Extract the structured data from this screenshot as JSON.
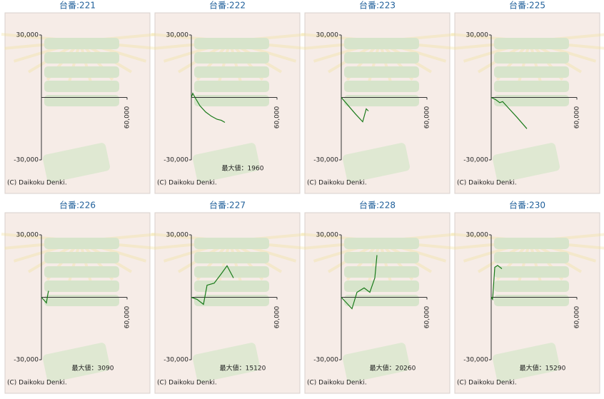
{
  "chart_data": [
    {
      "type": "line",
      "title": "台番:221",
      "x": [],
      "values": [],
      "color": "#1a7a1a",
      "xlim": [
        0,
        60000
      ],
      "ylim": [
        -30000,
        30000
      ],
      "xticks": [
        {
          "value": 60000,
          "label": "60,000"
        }
      ],
      "yticks": [
        {
          "value": -30000,
          "label": "-30,000"
        },
        {
          "value": 30000,
          "label": "30,000"
        }
      ],
      "copyright": "(C) Daikoku Denki."
    },
    {
      "type": "line",
      "title": "台番:222",
      "x": [
        0,
        1000,
        3000,
        6000,
        10000,
        14000,
        18000,
        21000,
        23500
      ],
      "values": [
        0,
        1960,
        -500,
        -4000,
        -7000,
        -9000,
        -10500,
        -11000,
        -12000
      ],
      "color": "#1a7a1a",
      "xlim": [
        0,
        60000
      ],
      "ylim": [
        -30000,
        30000
      ],
      "xticks": [
        {
          "value": 60000,
          "label": "60,000"
        }
      ],
      "yticks": [
        {
          "value": -30000,
          "label": "-30,000"
        },
        {
          "value": 30000,
          "label": "30,000"
        }
      ],
      "annotation": "最大値：1960",
      "copyright": "(C) Daikoku Denki."
    },
    {
      "type": "line",
      "title": "台番:223",
      "x": [
        0,
        5000,
        10000,
        15000,
        17500,
        19000
      ],
      "values": [
        0,
        -4000,
        -8000,
        -11700,
        -5500,
        -6500
      ],
      "color": "#1a7a1a",
      "xlim": [
        0,
        60000
      ],
      "ylim": [
        -30000,
        30000
      ],
      "xticks": [
        {
          "value": 60000,
          "label": "60,000"
        }
      ],
      "yticks": [
        {
          "value": -30000,
          "label": "-30,000"
        },
        {
          "value": 30000,
          "label": "30,000"
        }
      ],
      "copyright": "(C) Daikoku Denki."
    },
    {
      "type": "line",
      "title": "台番:225",
      "x": [
        0,
        3000,
        6000,
        8000,
        12000,
        18000,
        25000
      ],
      "values": [
        0,
        -1000,
        -2500,
        -2000,
        -5000,
        -9500,
        -15000
      ],
      "color": "#1a7a1a",
      "xlim": [
        0,
        60000
      ],
      "ylim": [
        -30000,
        30000
      ],
      "xticks": [
        {
          "value": 60000,
          "label": "60,000"
        }
      ],
      "yticks": [
        {
          "value": -30000,
          "label": "-30,000"
        },
        {
          "value": 30000,
          "label": "30,000"
        }
      ],
      "copyright": "(C) Daikoku Denki."
    },
    {
      "type": "line",
      "title": "台番:226",
      "x": [
        0,
        2000,
        3500,
        4500,
        5000
      ],
      "values": [
        0,
        -1500,
        -2700,
        1500,
        3090
      ],
      "color": "#1a7a1a",
      "xlim": [
        0,
        60000
      ],
      "ylim": [
        -30000,
        30000
      ],
      "xticks": [
        {
          "value": 60000,
          "label": "60,000"
        }
      ],
      "yticks": [
        {
          "value": -30000,
          "label": "-30,000"
        },
        {
          "value": 30000,
          "label": "30,000"
        }
      ],
      "annotation": "最大値：3090",
      "copyright": "(C) Daikoku Denki."
    },
    {
      "type": "line",
      "title": "台番:227",
      "x": [
        0,
        4000,
        8500,
        11000,
        16000,
        21000,
        25000,
        29500
      ],
      "values": [
        0,
        -1000,
        -3400,
        5800,
        6800,
        11300,
        15120,
        9300
      ],
      "color": "#1a7a1a",
      "xlim": [
        0,
        60000
      ],
      "ylim": [
        -30000,
        30000
      ],
      "xticks": [
        {
          "value": 60000,
          "label": "60,000"
        }
      ],
      "yticks": [
        {
          "value": -30000,
          "label": "-30,000"
        },
        {
          "value": 30000,
          "label": "30,000"
        }
      ],
      "annotation": "最大値：15120",
      "copyright": "(C) Daikoku Denki."
    },
    {
      "type": "line",
      "title": "台番:228",
      "x": [
        0,
        7500,
        11000,
        16000,
        20000,
        23500,
        25000
      ],
      "values": [
        0,
        -5500,
        2400,
        4500,
        2400,
        9300,
        20260
      ],
      "color": "#1a7a1a",
      "xlim": [
        0,
        60000
      ],
      "ylim": [
        -30000,
        30000
      ],
      "xticks": [
        {
          "value": 60000,
          "label": "60,000"
        }
      ],
      "yticks": [
        {
          "value": -30000,
          "label": "-30,000"
        },
        {
          "value": 30000,
          "label": "30,000"
        }
      ],
      "annotation": "最大値：20260",
      "copyright": "(C) Daikoku Denki."
    },
    {
      "type": "line",
      "title": "台番:230",
      "x": [
        0,
        1000,
        2500,
        4500,
        7500
      ],
      "values": [
        0,
        -1000,
        14400,
        15290,
        13700
      ],
      "color": "#1a7a1a",
      "xlim": [
        0,
        60000
      ],
      "ylim": [
        -30000,
        30000
      ],
      "xticks": [
        {
          "value": 60000,
          "label": "60,000"
        }
      ],
      "yticks": [
        {
          "value": -30000,
          "label": "-30,000"
        },
        {
          "value": 30000,
          "label": "30,000"
        }
      ],
      "annotation": "最大値：15290",
      "copyright": "(C) Daikoku Denki."
    }
  ]
}
